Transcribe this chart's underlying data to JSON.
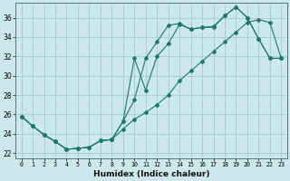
{
  "xlabel": "Humidex (Indice chaleur)",
  "bg_color": "#cce8ec",
  "grid_color": "#aacdd4",
  "line_color": "#1a7a6e",
  "xlim": [
    -0.5,
    23.5
  ],
  "ylim": [
    21.5,
    37.5
  ],
  "xticks": [
    0,
    1,
    2,
    3,
    4,
    5,
    6,
    7,
    8,
    9,
    10,
    11,
    12,
    13,
    14,
    15,
    16,
    17,
    18,
    19,
    20,
    21,
    22,
    23
  ],
  "yticks": [
    22,
    24,
    26,
    28,
    30,
    32,
    34,
    36
  ],
  "series": [
    {
      "x": [
        0,
        1,
        2,
        3,
        4,
        5,
        6,
        7,
        8,
        9,
        10,
        11,
        12,
        13,
        14,
        15,
        16,
        17,
        18,
        19,
        20,
        21,
        22,
        23
      ],
      "y": [
        25.8,
        24.8,
        23.9,
        23.2,
        22.4,
        22.5,
        22.6,
        23.3,
        23.4,
        24.5,
        25.5,
        26.2,
        27.0,
        28.0,
        29.5,
        30.5,
        31.5,
        32.5,
        33.5,
        34.5,
        35.5,
        35.8,
        35.5,
        31.8
      ]
    },
    {
      "x": [
        0,
        1,
        2,
        3,
        4,
        5,
        6,
        7,
        8,
        9,
        10,
        11,
        12,
        13,
        14,
        15,
        16,
        17,
        18,
        19,
        20,
        21,
        22,
        23
      ],
      "y": [
        25.8,
        24.8,
        23.9,
        23.2,
        22.4,
        22.5,
        22.6,
        23.3,
        23.4,
        25.3,
        27.5,
        31.8,
        33.5,
        35.2,
        35.4,
        34.8,
        35.0,
        35.1,
        36.2,
        37.1,
        36.0,
        33.8,
        31.8,
        31.8
      ]
    },
    {
      "x": [
        0,
        1,
        2,
        3,
        4,
        5,
        6,
        7,
        8,
        9,
        10,
        11,
        12,
        13,
        14,
        15,
        16,
        17,
        18,
        19,
        20,
        21,
        22,
        23
      ],
      "y": [
        25.8,
        24.8,
        23.9,
        23.2,
        22.4,
        22.5,
        22.6,
        23.3,
        23.4,
        25.3,
        31.8,
        28.5,
        32.0,
        33.3,
        35.3,
        34.8,
        35.0,
        35.0,
        36.2,
        37.1,
        36.0,
        33.8,
        31.8,
        31.8
      ]
    }
  ]
}
